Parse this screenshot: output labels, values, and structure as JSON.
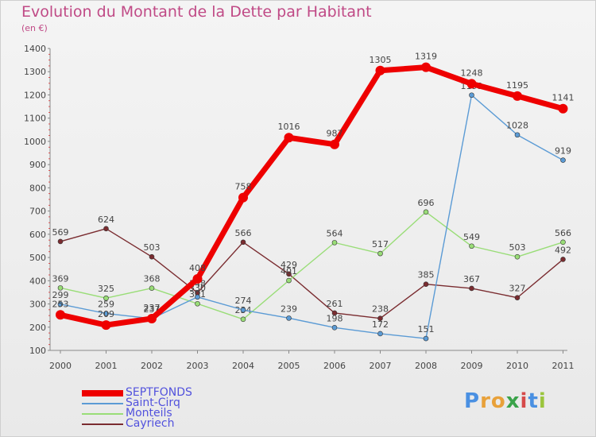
{
  "chart_data": {
    "type": "line",
    "title": "Evolution du Montant de la Dette par Habitant",
    "unit": "(en €)",
    "x": [
      "2000",
      "2001",
      "2002",
      "2003",
      "2004",
      "2005",
      "2006",
      "2007",
      "2008",
      "2009",
      "2010",
      "2011"
    ],
    "yticks": [
      100,
      200,
      300,
      400,
      500,
      600,
      700,
      800,
      900,
      1000,
      1100,
      1200,
      1300,
      1400
    ],
    "ylim": [
      100,
      1400
    ],
    "series": [
      {
        "name": "SEPTFONDS",
        "color": "#ee0000",
        "values": [
          253,
          209,
          237,
          408,
          758,
          1016,
          987,
          1305,
          1319,
          1248,
          1195,
          1141
        ]
      },
      {
        "name": "Saint-Cirq",
        "color": "#5b9bd5",
        "values": [
          299,
          259,
          237,
          330,
          274,
          239,
          198,
          172,
          151,
          1199,
          1028,
          919
        ]
      },
      {
        "name": "Monteils",
        "color": "#99dd77",
        "values": [
          369,
          325,
          368,
          301,
          234,
          401,
          564,
          517,
          696,
          549,
          503,
          566
        ]
      },
      {
        "name": "Cayriech",
        "color": "#7a2c30",
        "values": [
          569,
          624,
          503,
          348,
          566,
          429,
          261,
          238,
          385,
          367,
          327,
          492
        ]
      }
    ]
  },
  "brand": {
    "letters": [
      "P",
      "r",
      "o",
      "x",
      "i",
      "t",
      "i"
    ],
    "colors": [
      "#4a90e2",
      "#e8a13a",
      "#e8a13a",
      "#3aa34a",
      "#d64a4a",
      "#4a90e2",
      "#9bc53d"
    ]
  }
}
